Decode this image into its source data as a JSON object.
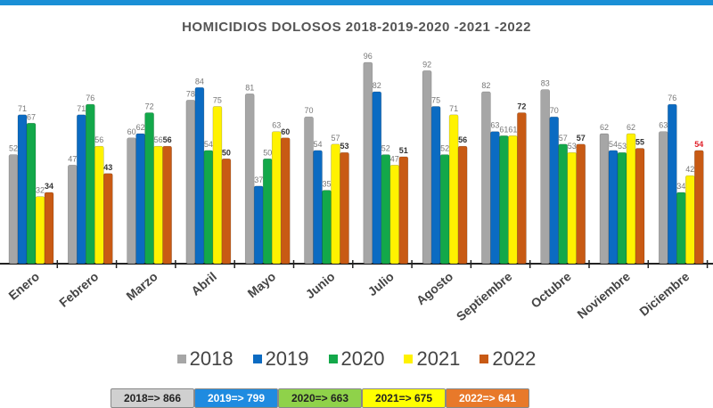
{
  "chart_data": {
    "type": "bar",
    "title": "HOMICIDIOS DOLOSOS 2018-2019-2020 -2021 -2022",
    "categories": [
      "Enero",
      "Febrero",
      "Marzo",
      "Abril",
      "Mayo",
      "Junio",
      "Julio",
      "Agosto",
      "Septiembre",
      "Octubre",
      "Noviembre",
      "Diciembre"
    ],
    "series": [
      {
        "name": "2018",
        "color": "#a6a6a6",
        "values": [
          52,
          47,
          60,
          78,
          81,
          70,
          96,
          92,
          82,
          83,
          62,
          63
        ]
      },
      {
        "name": "2019",
        "color": "#0b6bc2",
        "values": [
          71,
          71,
          62,
          84,
          37,
          54,
          82,
          75,
          63,
          70,
          54,
          76
        ]
      },
      {
        "name": "2020",
        "color": "#13a84a",
        "values": [
          67,
          76,
          72,
          54,
          50,
          35,
          52,
          52,
          61,
          57,
          53,
          34
        ]
      },
      {
        "name": "2021",
        "color": "#fff200",
        "values": [
          32,
          56,
          56,
          75,
          63,
          57,
          47,
          71,
          61,
          53,
          62,
          42
        ]
      },
      {
        "name": "2022",
        "color": "#c85a14",
        "values": [
          34,
          43,
          56,
          50,
          60,
          53,
          51,
          56,
          72,
          57,
          55,
          54
        ]
      }
    ],
    "ylim": [
      0,
      96
    ],
    "grid": false,
    "legend": "bottom",
    "highlight_label_color": "#e0202a"
  },
  "totals": [
    {
      "label": "2018=> 866",
      "bg": "#d0d0d0",
      "color": "#222"
    },
    {
      "label": "2019=> 799",
      "bg": "#1f8be0",
      "color": "#fff"
    },
    {
      "label": "2020=> 663",
      "bg": "#8fd24a",
      "color": "#222"
    },
    {
      "label": "2021=> 675",
      "bg": "#ffff00",
      "color": "#222"
    },
    {
      "label": "2022=> 641",
      "bg": "#e8792a",
      "color": "#fff"
    }
  ]
}
